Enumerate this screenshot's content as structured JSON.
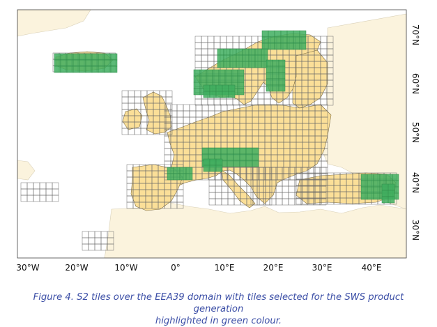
{
  "map": {
    "colors": {
      "ocean": "#ffffff",
      "land_outside": "#fbf3dd",
      "land_domain": "#fbdf98",
      "tile_outline": "#6a6a6a",
      "tile_selected": "#3fae5f",
      "border": "#555555"
    },
    "lon_labels": [
      "30°W",
      "20°W",
      "10°W",
      "0°",
      "10°E",
      "20°E",
      "30°E",
      "40°E"
    ],
    "lat_labels": [
      "30°N",
      "40°N",
      "50°N",
      "60°N",
      "70°N"
    ]
  },
  "caption": {
    "line1": "Figure 4. S2 tiles over the EEA39 domain with tiles selected for the SWS product generation",
    "line2": "highlighted in green colour."
  }
}
